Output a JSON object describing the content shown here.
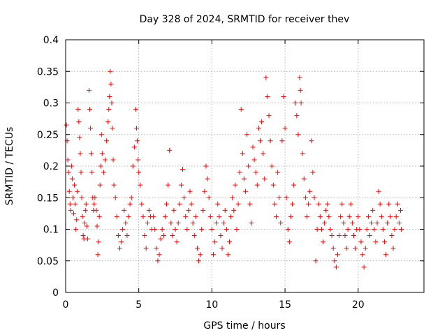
{
  "chart_data": {
    "type": "scatter",
    "title": "Day 328 of 2024, SRMTID for receiver thev",
    "xlabel": "GPS time / hours",
    "ylabel": "SRMTID / TECUs",
    "xlim": [
      0,
      24.5
    ],
    "ylim": [
      0,
      0.4
    ],
    "xticks": [
      0,
      5,
      10,
      15,
      20
    ],
    "xtick_labels": [
      "0",
      "5",
      "10",
      "15",
      "20"
    ],
    "yticks": [
      0,
      0.05,
      0.1,
      0.15,
      0.2,
      0.25,
      0.3,
      0.35,
      0.4
    ],
    "ytick_labels": [
      "0",
      "0.05",
      "0.1",
      "0.15",
      "0.2",
      "0.25",
      "0.3",
      "0.35",
      "0.4"
    ],
    "grid": true,
    "marker": "+",
    "color": "#ff0000",
    "series": [
      {
        "name": "SRMTID",
        "points": [
          [
            0.05,
            0.265
          ],
          [
            0.1,
            0.24
          ],
          [
            0.15,
            0.21
          ],
          [
            0.2,
            0.19
          ],
          [
            0.25,
            0.16
          ],
          [
            0.3,
            0.14
          ],
          [
            0.35,
            0.13
          ],
          [
            0.4,
            0.2
          ],
          [
            0.45,
            0.18
          ],
          [
            0.5,
            0.15
          ],
          [
            0.55,
            0.125
          ],
          [
            0.6,
            0.17
          ],
          [
            0.65,
            0.14
          ],
          [
            0.7,
            0.1
          ],
          [
            0.75,
            0.115
          ],
          [
            0.8,
            0.16
          ],
          [
            0.85,
            0.29
          ],
          [
            0.9,
            0.27
          ],
          [
            0.95,
            0.245
          ],
          [
            1.0,
            0.22
          ],
          [
            1.05,
            0.19
          ],
          [
            1.1,
            0.15
          ],
          [
            1.15,
            0.12
          ],
          [
            1.2,
            0.09
          ],
          [
            1.25,
            0.085
          ],
          [
            1.3,
            0.11
          ],
          [
            1.35,
            0.13
          ],
          [
            1.4,
            0.14
          ],
          [
            1.45,
            0.105
          ],
          [
            1.5,
            0.085
          ],
          [
            1.6,
            0.32
          ],
          [
            1.65,
            0.29
          ],
          [
            1.7,
            0.26
          ],
          [
            1.75,
            0.22
          ],
          [
            1.8,
            0.19
          ],
          [
            1.85,
            0.15
          ],
          [
            1.9,
            0.13
          ],
          [
            1.95,
            0.14
          ],
          [
            2.0,
            0.15
          ],
          [
            2.1,
            0.13
          ],
          [
            2.15,
            0.105
          ],
          [
            2.2,
            0.06
          ],
          [
            2.25,
            0.08
          ],
          [
            2.3,
            0.12
          ],
          [
            2.35,
            0.17
          ],
          [
            2.4,
            0.2
          ],
          [
            2.45,
            0.25
          ],
          [
            2.5,
            0.22
          ],
          [
            2.6,
            0.19
          ],
          [
            2.7,
            0.21
          ],
          [
            2.8,
            0.24
          ],
          [
            2.9,
            0.27
          ],
          [
            2.95,
            0.29
          ],
          [
            3.0,
            0.31
          ],
          [
            3.05,
            0.35
          ],
          [
            3.1,
            0.33
          ],
          [
            3.15,
            0.3
          ],
          [
            3.2,
            0.26
          ],
          [
            3.25,
            0.21
          ],
          [
            3.3,
            0.17
          ],
          [
            3.4,
            0.15
          ],
          [
            3.5,
            0.12
          ],
          [
            3.6,
            0.09
          ],
          [
            3.7,
            0.07
          ],
          [
            3.8,
            0.08
          ],
          [
            3.9,
            0.1
          ],
          [
            4.0,
            0.13
          ],
          [
            4.1,
            0.11
          ],
          [
            4.2,
            0.09
          ],
          [
            4.3,
            0.12
          ],
          [
            4.4,
            0.14
          ],
          [
            4.5,
            0.15
          ],
          [
            4.6,
            0.2
          ],
          [
            4.7,
            0.23
          ],
          [
            4.8,
            0.29
          ],
          [
            4.85,
            0.26
          ],
          [
            4.9,
            0.24
          ],
          [
            4.95,
            0.21
          ],
          [
            5.0,
            0.19
          ],
          [
            5.1,
            0.17
          ],
          [
            5.2,
            0.14
          ],
          [
            5.3,
            0.12
          ],
          [
            5.4,
            0.09
          ],
          [
            5.5,
            0.07
          ],
          [
            5.6,
            0.11
          ],
          [
            5.7,
            0.13
          ],
          [
            5.8,
            0.12
          ],
          [
            5.9,
            0.1
          ],
          [
            6.0,
            0.12
          ],
          [
            6.1,
            0.1
          ],
          [
            6.2,
            0.07
          ],
          [
            6.3,
            0.05
          ],
          [
            6.4,
            0.06
          ],
          [
            6.5,
            0.085
          ],
          [
            6.6,
            0.1
          ],
          [
            6.7,
            0.09
          ],
          [
            6.8,
            0.12
          ],
          [
            6.9,
            0.14
          ],
          [
            7.0,
            0.17
          ],
          [
            7.1,
            0.225
          ],
          [
            7.2,
            0.11
          ],
          [
            7.3,
            0.09
          ],
          [
            7.4,
            0.13
          ],
          [
            7.5,
            0.1
          ],
          [
            7.6,
            0.08
          ],
          [
            7.7,
            0.11
          ],
          [
            7.8,
            0.14
          ],
          [
            7.9,
            0.17
          ],
          [
            8.0,
            0.195
          ],
          [
            8.1,
            0.15
          ],
          [
            8.2,
            0.12
          ],
          [
            8.3,
            0.1
          ],
          [
            8.4,
            0.13
          ],
          [
            8.5,
            0.16
          ],
          [
            8.6,
            0.14
          ],
          [
            8.7,
            0.11
          ],
          [
            8.8,
            0.09
          ],
          [
            8.9,
            0.12
          ],
          [
            9.0,
            0.07
          ],
          [
            9.1,
            0.05
          ],
          [
            9.2,
            0.06
          ],
          [
            9.3,
            0.1
          ],
          [
            9.4,
            0.13
          ],
          [
            9.5,
            0.16
          ],
          [
            9.6,
            0.2
          ],
          [
            9.7,
            0.18
          ],
          [
            9.8,
            0.15
          ],
          [
            9.9,
            0.12
          ],
          [
            10.0,
            0.1
          ],
          [
            10.1,
            0.06
          ],
          [
            10.2,
            0.08
          ],
          [
            10.3,
            0.11
          ],
          [
            10.4,
            0.14
          ],
          [
            10.5,
            0.12
          ],
          [
            10.6,
            0.09
          ],
          [
            10.7,
            0.07
          ],
          [
            10.8,
            0.11
          ],
          [
            10.9,
            0.13
          ],
          [
            11.0,
            0.1
          ],
          [
            11.1,
            0.06
          ],
          [
            11.2,
            0.08
          ],
          [
            11.3,
            0.12
          ],
          [
            11.4,
            0.15
          ],
          [
            11.5,
            0.13
          ],
          [
            11.6,
            0.17
          ],
          [
            11.7,
            0.1
          ],
          [
            11.8,
            0.14
          ],
          [
            11.9,
            0.19
          ],
          [
            12.0,
            0.29
          ],
          [
            12.1,
            0.22
          ],
          [
            12.2,
            0.18
          ],
          [
            12.3,
            0.16
          ],
          [
            12.4,
            0.25
          ],
          [
            12.5,
            0.2
          ],
          [
            12.6,
            0.14
          ],
          [
            12.7,
            0.11
          ],
          [
            12.8,
            0.23
          ],
          [
            12.9,
            0.21
          ],
          [
            13.0,
            0.19
          ],
          [
            13.1,
            0.17
          ],
          [
            13.2,
            0.26
          ],
          [
            13.3,
            0.24
          ],
          [
            13.4,
            0.27
          ],
          [
            13.5,
            0.22
          ],
          [
            13.6,
            0.18
          ],
          [
            13.7,
            0.34
          ],
          [
            13.8,
            0.31
          ],
          [
            13.9,
            0.28
          ],
          [
            14.0,
            0.24
          ],
          [
            14.1,
            0.2
          ],
          [
            14.2,
            0.17
          ],
          [
            14.3,
            0.14
          ],
          [
            14.4,
            0.12
          ],
          [
            14.5,
            0.19
          ],
          [
            14.6,
            0.15
          ],
          [
            14.7,
            0.11
          ],
          [
            14.8,
            0.24
          ],
          [
            14.9,
            0.31
          ],
          [
            15.0,
            0.26
          ],
          [
            15.1,
            0.15
          ],
          [
            15.2,
            0.1
          ],
          [
            15.3,
            0.08
          ],
          [
            15.4,
            0.12
          ],
          [
            15.5,
            0.14
          ],
          [
            15.6,
            0.17
          ],
          [
            15.7,
            0.3
          ],
          [
            15.8,
            0.28
          ],
          [
            15.9,
            0.25
          ],
          [
            16.0,
            0.34
          ],
          [
            16.05,
            0.32
          ],
          [
            16.1,
            0.3
          ],
          [
            16.2,
            0.22
          ],
          [
            16.3,
            0.18
          ],
          [
            16.4,
            0.15
          ],
          [
            16.5,
            0.12
          ],
          [
            16.6,
            0.14
          ],
          [
            16.7,
            0.16
          ],
          [
            16.8,
            0.24
          ],
          [
            16.9,
            0.19
          ],
          [
            17.0,
            0.15
          ],
          [
            17.1,
            0.05
          ],
          [
            17.2,
            0.1
          ],
          [
            17.3,
            0.14
          ],
          [
            17.4,
            0.12
          ],
          [
            17.5,
            0.1
          ],
          [
            17.6,
            0.08
          ],
          [
            17.7,
            0.11
          ],
          [
            17.8,
            0.13
          ],
          [
            17.9,
            0.14
          ],
          [
            18.0,
            0.12
          ],
          [
            18.1,
            0.1
          ],
          [
            18.2,
            0.09
          ],
          [
            18.3,
            0.07
          ],
          [
            18.4,
            0.05
          ],
          [
            18.5,
            0.04
          ],
          [
            18.6,
            0.06
          ],
          [
            18.7,
            0.09
          ],
          [
            18.8,
            0.12
          ],
          [
            18.9,
            0.14
          ],
          [
            19.0,
            0.11
          ],
          [
            19.1,
            0.09
          ],
          [
            19.2,
            0.07
          ],
          [
            19.3,
            0.1
          ],
          [
            19.4,
            0.12
          ],
          [
            19.5,
            0.14
          ],
          [
            19.6,
            0.11
          ],
          [
            19.7,
            0.09
          ],
          [
            19.8,
            0.07
          ],
          [
            19.9,
            0.1
          ],
          [
            20.0,
            0.12
          ],
          [
            20.1,
            0.1
          ],
          [
            20.2,
            0.08
          ],
          [
            20.3,
            0.06
          ],
          [
            20.4,
            0.04
          ],
          [
            20.5,
            0.07
          ],
          [
            20.6,
            0.1
          ],
          [
            20.7,
            0.12
          ],
          [
            20.8,
            0.09
          ],
          [
            20.9,
            0.11
          ],
          [
            21.0,
            0.13
          ],
          [
            21.1,
            0.1
          ],
          [
            21.2,
            0.08
          ],
          [
            21.3,
            0.11
          ],
          [
            21.4,
            0.16
          ],
          [
            21.5,
            0.14
          ],
          [
            21.6,
            0.12
          ],
          [
            21.7,
            0.1
          ],
          [
            21.8,
            0.08
          ],
          [
            21.9,
            0.06
          ],
          [
            22.0,
            0.11
          ],
          [
            22.1,
            0.14
          ],
          [
            22.2,
            0.12
          ],
          [
            22.3,
            0.09
          ],
          [
            22.4,
            0.07
          ],
          [
            22.5,
            0.1
          ],
          [
            22.6,
            0.12
          ],
          [
            22.7,
            0.14
          ],
          [
            22.8,
            0.11
          ],
          [
            22.9,
            0.13
          ],
          [
            22.95,
            0.1
          ]
        ]
      }
    ]
  }
}
